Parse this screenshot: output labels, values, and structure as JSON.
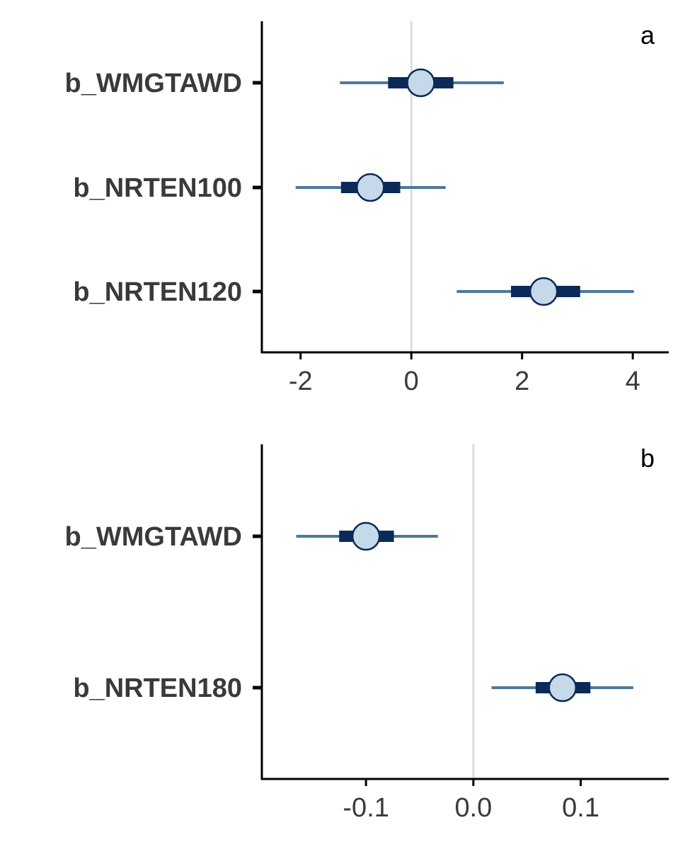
{
  "colors": {
    "outer_interval": "#4a7a9a",
    "inner_interval": "#0b2a5a",
    "point_fill": "#c6d9e8",
    "point_stroke": "#0b2a5a",
    "zero_line": "#dcdcdc",
    "axis": "#000000",
    "text": "#3a3a3a"
  },
  "chart_data": [
    {
      "type": "interval",
      "panel_label": "a",
      "xlim": [
        -2.7,
        4.65
      ],
      "xticks": [
        -2,
        0,
        2,
        4
      ],
      "xtick_labels": [
        "-2",
        "0",
        "2",
        "4"
      ],
      "reference_line": 0,
      "rows": [
        {
          "label": "b_WMGTAWD",
          "estimate": 0.17,
          "inner": [
            -0.42,
            0.76
          ],
          "outer": [
            -1.29,
            1.67
          ]
        },
        {
          "label": "b_NRTEN100",
          "estimate": -0.74,
          "inner": [
            -1.27,
            -0.2
          ],
          "outer": [
            -2.09,
            0.62
          ]
        },
        {
          "label": "b_NRTEN120",
          "estimate": 2.39,
          "inner": [
            1.8,
            3.05
          ],
          "outer": [
            0.82,
            4.02
          ]
        }
      ]
    },
    {
      "type": "interval",
      "panel_label": "b",
      "xlim": [
        -0.197,
        0.182
      ],
      "xticks": [
        -0.1,
        0.0,
        0.1
      ],
      "xtick_labels": [
        "-0.1",
        "0.0",
        "0.1"
      ],
      "reference_line": 0,
      "rows": [
        {
          "label": "b_WMGTAWD",
          "estimate": -0.1,
          "inner": [
            -0.125,
            -0.074
          ],
          "outer": [
            -0.165,
            -0.033
          ]
        },
        {
          "label": "b_NRTEN180",
          "estimate": 0.083,
          "inner": [
            0.058,
            0.109
          ],
          "outer": [
            0.017,
            0.149
          ]
        }
      ]
    }
  ]
}
